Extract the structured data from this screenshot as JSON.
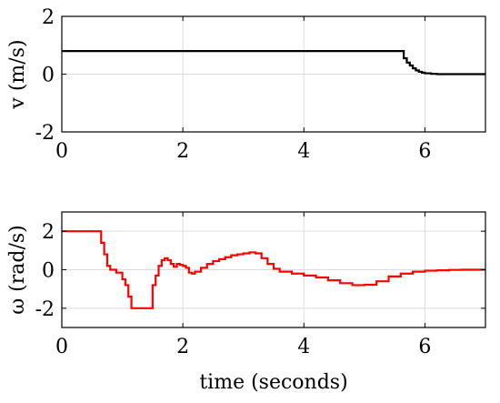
{
  "chart_data": [
    {
      "type": "line",
      "title": "",
      "xlabel": "",
      "ylabel": "v (m/s)",
      "xlim": [
        0,
        7
      ],
      "ylim": [
        -2,
        2
      ],
      "xticks": [
        0,
        2,
        4,
        6
      ],
      "yticks": [
        -2,
        0,
        2
      ],
      "xtick_labels": [
        "0",
        "2",
        "4",
        "6"
      ],
      "ytick_labels": [
        "-2",
        "0",
        "2"
      ],
      "grid": true,
      "step": true,
      "series": [
        {
          "color": "#000000",
          "x": [
            0,
            0.5,
            1,
            1.5,
            2,
            2.5,
            3,
            3.5,
            4,
            4.5,
            5,
            5.5,
            5.6,
            5.65,
            5.7,
            5.75,
            5.8,
            5.85,
            5.9,
            5.95,
            6.0,
            6.1,
            6.2,
            6.4,
            6.6,
            7.0
          ],
          "y": [
            0.8,
            0.8,
            0.8,
            0.8,
            0.8,
            0.8,
            0.8,
            0.8,
            0.8,
            0.8,
            0.8,
            0.8,
            0.8,
            0.55,
            0.4,
            0.3,
            0.2,
            0.13,
            0.08,
            0.05,
            0.03,
            0.01,
            0.0,
            0.0,
            0.0,
            0.0
          ]
        }
      ]
    },
    {
      "type": "line",
      "title": "",
      "xlabel": "time (seconds)",
      "ylabel": "ω (rad/s)",
      "xlim": [
        0,
        7
      ],
      "ylim": [
        -3,
        3
      ],
      "xticks": [
        0,
        2,
        4,
        6
      ],
      "yticks": [
        -2,
        0,
        2
      ],
      "xtick_labels": [
        "0",
        "2",
        "4",
        "6"
      ],
      "ytick_labels": [
        "-2",
        "0",
        "2"
      ],
      "grid": true,
      "step": true,
      "series": [
        {
          "color": "#ff0000",
          "x": [
            0,
            0.6,
            0.65,
            0.7,
            0.75,
            0.8,
            0.9,
            1.0,
            1.05,
            1.1,
            1.15,
            1.2,
            1.3,
            1.4,
            1.45,
            1.5,
            1.55,
            1.6,
            1.65,
            1.7,
            1.75,
            1.8,
            1.85,
            1.9,
            1.95,
            2.0,
            2.05,
            2.1,
            2.15,
            2.2,
            2.3,
            2.4,
            2.5,
            2.6,
            2.7,
            2.8,
            2.9,
            3.0,
            3.1,
            3.2,
            3.3,
            3.4,
            3.5,
            3.6,
            3.8,
            4.0,
            4.2,
            4.4,
            4.6,
            4.8,
            4.9,
            5.0,
            5.2,
            5.4,
            5.6,
            5.8,
            6.0,
            6.2,
            6.4,
            6.6,
            7.0
          ],
          "y": [
            2.0,
            2.0,
            1.4,
            0.8,
            0.2,
            0.0,
            -0.15,
            -0.5,
            -0.8,
            -1.4,
            -2.0,
            -2.0,
            -2.0,
            -2.0,
            -2.0,
            -0.8,
            -0.3,
            0.2,
            0.5,
            0.6,
            0.5,
            0.3,
            0.15,
            0.3,
            0.25,
            0.2,
            0.1,
            -0.15,
            -0.2,
            -0.1,
            0.1,
            0.3,
            0.45,
            0.55,
            0.65,
            0.75,
            0.8,
            0.85,
            0.9,
            0.85,
            0.6,
            0.3,
            0.05,
            -0.1,
            -0.2,
            -0.3,
            -0.4,
            -0.55,
            -0.7,
            -0.8,
            -0.8,
            -0.78,
            -0.6,
            -0.35,
            -0.2,
            -0.1,
            -0.05,
            -0.03,
            -0.01,
            0.0,
            0.0
          ]
        }
      ]
    }
  ]
}
